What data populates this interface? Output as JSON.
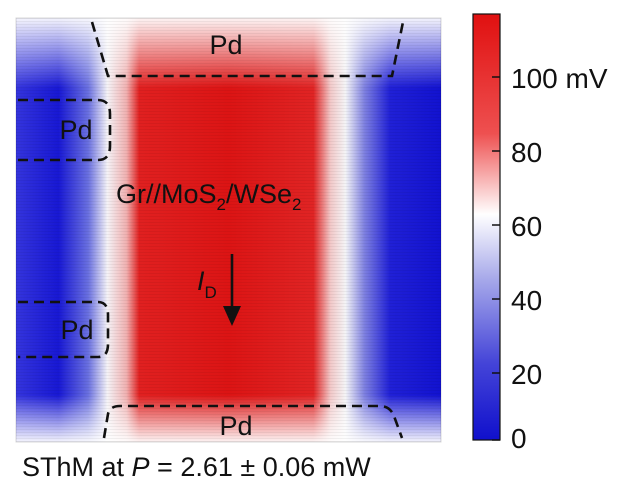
{
  "map": {
    "region_labels": {
      "top": "Pd",
      "left_upper": "Pd",
      "left_lower": "Pd",
      "bottom": "Pd"
    },
    "channel_label": {
      "base": "Gr//MoS",
      "sub1": "2",
      "mid": "/WSe",
      "sub2": "2"
    },
    "current_label": {
      "symbol": "I",
      "sub": "D"
    },
    "colors": {
      "red": "#e01414",
      "white": "#ffffff",
      "blue": "#1616d8",
      "outline": "#111111"
    }
  },
  "colorbar": {
    "unit": "mV",
    "top_tick_label": "100 mV",
    "ticks": [
      "80",
      "60",
      "40",
      "20",
      "0"
    ],
    "min": 0,
    "max": 115
  },
  "caption": {
    "prefix": "SThM at ",
    "variable": "P",
    "suffix": " = 2.61 ± 0.06 mW"
  }
}
